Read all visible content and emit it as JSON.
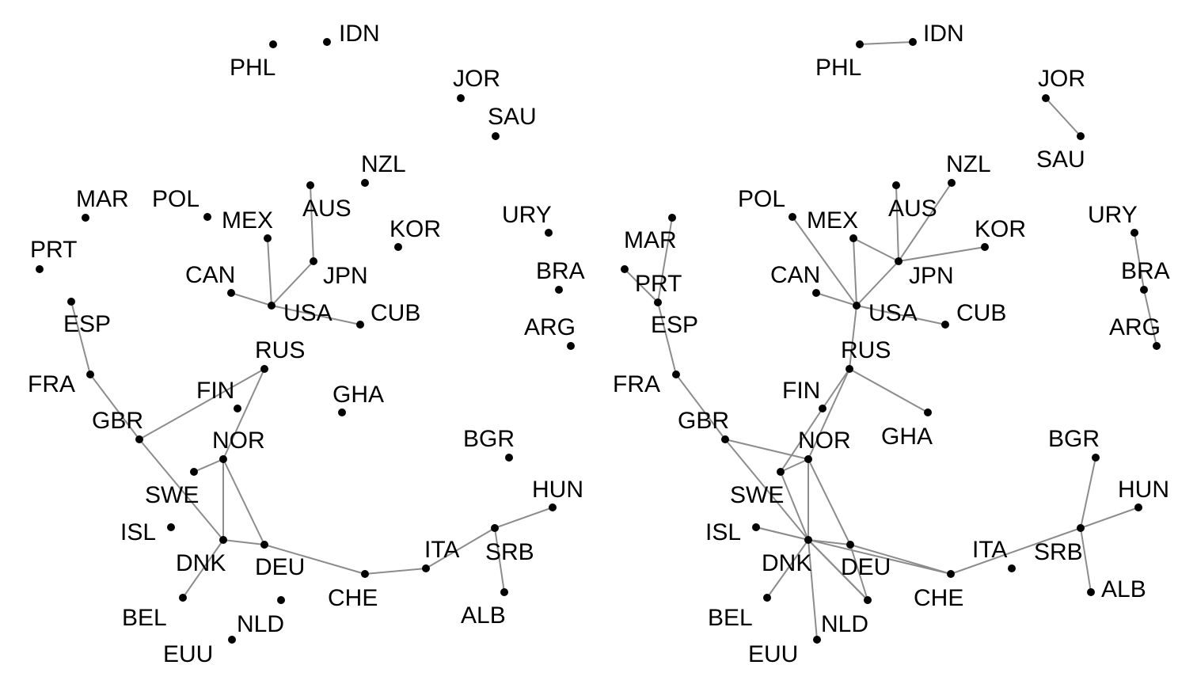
{
  "colors": {
    "edge": "#8c8c8c",
    "node": "#000000",
    "background": "#ffffff"
  },
  "panels": [
    {
      "name": "left",
      "nodes": [
        {
          "id": "IDN",
          "label": "IDN"
        },
        {
          "id": "PHL",
          "label": "PHL"
        },
        {
          "id": "JOR",
          "label": "JOR"
        },
        {
          "id": "SAU",
          "label": "SAU"
        },
        {
          "id": "NZL",
          "label": "NZL"
        },
        {
          "id": "AUS",
          "label": "AUS"
        },
        {
          "id": "MAR",
          "label": "MAR"
        },
        {
          "id": "POL",
          "label": "POL"
        },
        {
          "id": "MEX",
          "label": "MEX"
        },
        {
          "id": "KOR",
          "label": "KOR"
        },
        {
          "id": "URY",
          "label": "URY"
        },
        {
          "id": "PRT",
          "label": "PRT"
        },
        {
          "id": "JPN",
          "label": "JPN"
        },
        {
          "id": "CAN",
          "label": "CAN"
        },
        {
          "id": "BRA",
          "label": "BRA"
        },
        {
          "id": "ESP",
          "label": "ESP"
        },
        {
          "id": "USA",
          "label": "USA"
        },
        {
          "id": "CUB",
          "label": "CUB"
        },
        {
          "id": "ARG",
          "label": "ARG"
        },
        {
          "id": "RUS",
          "label": "RUS"
        },
        {
          "id": "FRA",
          "label": "FRA"
        },
        {
          "id": "FIN",
          "label": "FIN"
        },
        {
          "id": "GHA",
          "label": "GHA"
        },
        {
          "id": "GBR",
          "label": "GBR"
        },
        {
          "id": "NOR",
          "label": "NOR"
        },
        {
          "id": "BGR",
          "label": "BGR"
        },
        {
          "id": "SWE",
          "label": "SWE"
        },
        {
          "id": "HUN",
          "label": "HUN"
        },
        {
          "id": "ISL",
          "label": "ISL"
        },
        {
          "id": "SRB",
          "label": "SRB"
        },
        {
          "id": "ITA",
          "label": "ITA"
        },
        {
          "id": "DNK",
          "label": "DNK"
        },
        {
          "id": "DEU",
          "label": "DEU"
        },
        {
          "id": "CHE",
          "label": "CHE"
        },
        {
          "id": "ALB",
          "label": "ALB"
        },
        {
          "id": "BEL",
          "label": "BEL"
        },
        {
          "id": "NLD",
          "label": "NLD"
        },
        {
          "id": "EUU",
          "label": "EUU"
        }
      ],
      "edges": [
        [
          "AUS",
          "JPN"
        ],
        [
          "JPN",
          "USA"
        ],
        [
          "MEX",
          "USA"
        ],
        [
          "CAN",
          "USA"
        ],
        [
          "USA",
          "CUB"
        ],
        [
          "RUS",
          "GBR"
        ],
        [
          "RUS",
          "NOR"
        ],
        [
          "ESP",
          "FRA"
        ],
        [
          "FRA",
          "GBR"
        ],
        [
          "GBR",
          "DNK"
        ],
        [
          "SWE",
          "NOR"
        ],
        [
          "NOR",
          "DNK"
        ],
        [
          "NOR",
          "DEU"
        ],
        [
          "DNK",
          "DEU"
        ],
        [
          "DNK",
          "BEL"
        ],
        [
          "DEU",
          "CHE"
        ],
        [
          "CHE",
          "ITA"
        ],
        [
          "ITA",
          "SRB"
        ],
        [
          "SRB",
          "HUN"
        ],
        [
          "SRB",
          "ALB"
        ]
      ]
    },
    {
      "name": "right",
      "nodes": [
        {
          "id": "IDN",
          "label": "IDN"
        },
        {
          "id": "PHL",
          "label": "PHL"
        },
        {
          "id": "JOR",
          "label": "JOR"
        },
        {
          "id": "SAU",
          "label": "SAU"
        },
        {
          "id": "NZL",
          "label": "NZL"
        },
        {
          "id": "AUS",
          "label": "AUS"
        },
        {
          "id": "POL",
          "label": "POL"
        },
        {
          "id": "MEX",
          "label": "MEX"
        },
        {
          "id": "MAR",
          "label": "MAR"
        },
        {
          "id": "KOR",
          "label": "KOR"
        },
        {
          "id": "URY",
          "label": "URY"
        },
        {
          "id": "PRT",
          "label": "PRT"
        },
        {
          "id": "JPN",
          "label": "JPN"
        },
        {
          "id": "CAN",
          "label": "CAN"
        },
        {
          "id": "BRA",
          "label": "BRA"
        },
        {
          "id": "ESP",
          "label": "ESP"
        },
        {
          "id": "USA",
          "label": "USA"
        },
        {
          "id": "CUB",
          "label": "CUB"
        },
        {
          "id": "ARG",
          "label": "ARG"
        },
        {
          "id": "RUS",
          "label": "RUS"
        },
        {
          "id": "FRA",
          "label": "FRA"
        },
        {
          "id": "FIN",
          "label": "FIN"
        },
        {
          "id": "GHA",
          "label": "GHA"
        },
        {
          "id": "GBR",
          "label": "GBR"
        },
        {
          "id": "NOR",
          "label": "NOR"
        },
        {
          "id": "BGR",
          "label": "BGR"
        },
        {
          "id": "SWE",
          "label": "SWE"
        },
        {
          "id": "HUN",
          "label": "HUN"
        },
        {
          "id": "ISL",
          "label": "ISL"
        },
        {
          "id": "SRB",
          "label": "SRB"
        },
        {
          "id": "ITA",
          "label": "ITA"
        },
        {
          "id": "DNK",
          "label": "DNK"
        },
        {
          "id": "DEU",
          "label": "DEU"
        },
        {
          "id": "CHE",
          "label": "CHE"
        },
        {
          "id": "ALB",
          "label": "ALB"
        },
        {
          "id": "BEL",
          "label": "BEL"
        },
        {
          "id": "NLD",
          "label": "NLD"
        },
        {
          "id": "EUU",
          "label": "EUU"
        }
      ],
      "edges": [
        [
          "PHL",
          "IDN"
        ],
        [
          "JOR",
          "SAU"
        ],
        [
          "URY",
          "BRA"
        ],
        [
          "BRA",
          "ARG"
        ],
        [
          "MAR",
          "ESP"
        ],
        [
          "PRT",
          "ESP"
        ],
        [
          "ESP",
          "FRA"
        ],
        [
          "FRA",
          "GBR"
        ],
        [
          "AUS",
          "JPN"
        ],
        [
          "NZL",
          "JPN"
        ],
        [
          "KOR",
          "JPN"
        ],
        [
          "MEX",
          "JPN"
        ],
        [
          "JPN",
          "USA"
        ],
        [
          "MEX",
          "USA"
        ],
        [
          "POL",
          "USA"
        ],
        [
          "CAN",
          "USA"
        ],
        [
          "USA",
          "CUB"
        ],
        [
          "USA",
          "RUS"
        ],
        [
          "RUS",
          "GHA"
        ],
        [
          "RUS",
          "FIN"
        ],
        [
          "RUS",
          "NOR"
        ],
        [
          "FIN",
          "SWE"
        ],
        [
          "SWE",
          "NOR"
        ],
        [
          "GBR",
          "NOR"
        ],
        [
          "GBR",
          "DNK"
        ],
        [
          "NOR",
          "DNK"
        ],
        [
          "NOR",
          "DEU"
        ],
        [
          "SWE",
          "DNK"
        ],
        [
          "DNK",
          "DEU"
        ],
        [
          "DNK",
          "NLD"
        ],
        [
          "DNK",
          "EUU"
        ],
        [
          "DNK",
          "BEL"
        ],
        [
          "ISL",
          "DNK"
        ],
        [
          "DNK",
          "NLD"
        ],
        [
          "DEU",
          "NLD"
        ],
        [
          "ISL",
          "CHE"
        ],
        [
          "DEU",
          "CHE"
        ],
        [
          "CHE",
          "SRB"
        ],
        [
          "BGR",
          "SRB"
        ],
        [
          "HUN",
          "SRB"
        ],
        [
          "SRB",
          "ALB"
        ]
      ]
    }
  ]
}
